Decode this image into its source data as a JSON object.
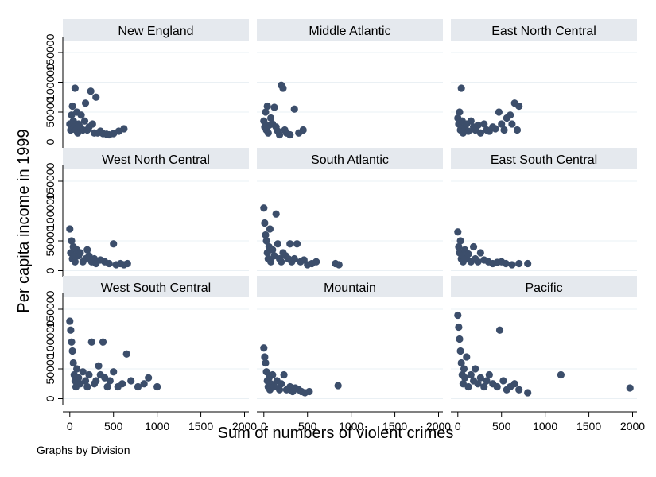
{
  "chart_data": {
    "type": "scatter",
    "layout": "3x3 small multiples",
    "xlabel": "Sum of numbers of violent crimes",
    "ylabel": "Per capita income in 1999",
    "xticks": [
      0,
      500,
      1000,
      1500,
      2000
    ],
    "yticks": [
      0,
      50000,
      100000,
      150000
    ],
    "xlim": [
      -80,
      2050
    ],
    "ylim": [
      -10000,
      170000
    ],
    "note": "Graphs by Division",
    "marker_color": "#3c4e6b",
    "panel_title_bg": "#e5e9ee",
    "panels": [
      {
        "title": "New England",
        "points": [
          [
            0,
            30000
          ],
          [
            10,
            20000
          ],
          [
            20,
            45000
          ],
          [
            30,
            60000
          ],
          [
            40,
            35000
          ],
          [
            50,
            25000
          ],
          [
            60,
            90000
          ],
          [
            70,
            20000
          ],
          [
            80,
            50000
          ],
          [
            90,
            15000
          ],
          [
            100,
            30000
          ],
          [
            120,
            25000
          ],
          [
            130,
            45000
          ],
          [
            150,
            20000
          ],
          [
            170,
            35000
          ],
          [
            180,
            65000
          ],
          [
            200,
            20000
          ],
          [
            220,
            25000
          ],
          [
            240,
            85000
          ],
          [
            260,
            30000
          ],
          [
            280,
            15000
          ],
          [
            300,
            75000
          ],
          [
            320,
            15000
          ],
          [
            350,
            18000
          ],
          [
            380,
            14000
          ],
          [
            420,
            13000
          ],
          [
            450,
            12000
          ],
          [
            500,
            14000
          ],
          [
            560,
            18000
          ],
          [
            620,
            22000
          ]
        ]
      },
      {
        "title": "Middle Atlantic",
        "points": [
          [
            0,
            35000
          ],
          [
            10,
            25000
          ],
          [
            20,
            50000
          ],
          [
            30,
            20000
          ],
          [
            40,
            60000
          ],
          [
            50,
            15000
          ],
          [
            60,
            28000
          ],
          [
            80,
            40000
          ],
          [
            100,
            30000
          ],
          [
            120,
            58000
          ],
          [
            140,
            25000
          ],
          [
            160,
            18000
          ],
          [
            180,
            12000
          ],
          [
            200,
            95000
          ],
          [
            220,
            90000
          ],
          [
            240,
            20000
          ],
          [
            260,
            15000
          ],
          [
            300,
            12000
          ],
          [
            350,
            55000
          ],
          [
            400,
            15000
          ],
          [
            450,
            20000
          ]
        ]
      },
      {
        "title": "East North Central",
        "points": [
          [
            0,
            40000
          ],
          [
            10,
            30000
          ],
          [
            20,
            50000
          ],
          [
            30,
            20000
          ],
          [
            40,
            90000
          ],
          [
            50,
            35000
          ],
          [
            60,
            15000
          ],
          [
            80,
            25000
          ],
          [
            100,
            30000
          ],
          [
            120,
            18000
          ],
          [
            150,
            35000
          ],
          [
            180,
            25000
          ],
          [
            200,
            20000
          ],
          [
            230,
            28000
          ],
          [
            260,
            15000
          ],
          [
            300,
            30000
          ],
          [
            330,
            20000
          ],
          [
            360,
            18000
          ],
          [
            400,
            25000
          ],
          [
            430,
            22000
          ],
          [
            470,
            50000
          ],
          [
            500,
            30000
          ],
          [
            530,
            20000
          ],
          [
            560,
            40000
          ],
          [
            600,
            45000
          ],
          [
            620,
            30000
          ],
          [
            650,
            65000
          ],
          [
            680,
            20000
          ],
          [
            700,
            60000
          ]
        ]
      },
      {
        "title": "West North Central",
        "points": [
          [
            0,
            70000
          ],
          [
            10,
            30000
          ],
          [
            20,
            50000
          ],
          [
            30,
            20000
          ],
          [
            40,
            40000
          ],
          [
            50,
            25000
          ],
          [
            60,
            15000
          ],
          [
            80,
            35000
          ],
          [
            100,
            25000
          ],
          [
            120,
            30000
          ],
          [
            150,
            15000
          ],
          [
            180,
            20000
          ],
          [
            200,
            35000
          ],
          [
            220,
            25000
          ],
          [
            250,
            15000
          ],
          [
            280,
            20000
          ],
          [
            300,
            12000
          ],
          [
            350,
            18000
          ],
          [
            400,
            15000
          ],
          [
            450,
            12000
          ],
          [
            500,
            45000
          ],
          [
            530,
            10000
          ],
          [
            580,
            12000
          ],
          [
            620,
            10000
          ],
          [
            660,
            12000
          ]
        ]
      },
      {
        "title": "South Atlantic",
        "points": [
          [
            0,
            105000
          ],
          [
            10,
            80000
          ],
          [
            20,
            60000
          ],
          [
            30,
            50000
          ],
          [
            40,
            30000
          ],
          [
            50,
            20000
          ],
          [
            60,
            40000
          ],
          [
            70,
            70000
          ],
          [
            80,
            15000
          ],
          [
            100,
            35000
          ],
          [
            120,
            25000
          ],
          [
            140,
            95000
          ],
          [
            160,
            45000
          ],
          [
            180,
            20000
          ],
          [
            200,
            15000
          ],
          [
            220,
            30000
          ],
          [
            250,
            25000
          ],
          [
            280,
            20000
          ],
          [
            300,
            45000
          ],
          [
            320,
            15000
          ],
          [
            350,
            20000
          ],
          [
            380,
            45000
          ],
          [
            420,
            15000
          ],
          [
            460,
            18000
          ],
          [
            500,
            10000
          ],
          [
            550,
            12000
          ],
          [
            600,
            15000
          ],
          [
            820,
            12000
          ],
          [
            860,
            10000
          ]
        ]
      },
      {
        "title": "East South Central",
        "points": [
          [
            0,
            65000
          ],
          [
            10,
            40000
          ],
          [
            20,
            30000
          ],
          [
            30,
            50000
          ],
          [
            40,
            20000
          ],
          [
            50,
            25000
          ],
          [
            60,
            15000
          ],
          [
            80,
            35000
          ],
          [
            100,
            20000
          ],
          [
            120,
            28000
          ],
          [
            150,
            15000
          ],
          [
            180,
            40000
          ],
          [
            200,
            20000
          ],
          [
            230,
            15000
          ],
          [
            260,
            30000
          ],
          [
            300,
            18000
          ],
          [
            350,
            15000
          ],
          [
            400,
            12000
          ],
          [
            450,
            14000
          ],
          [
            500,
            15000
          ],
          [
            550,
            12000
          ],
          [
            620,
            10000
          ],
          [
            700,
            12000
          ],
          [
            800,
            12000
          ]
        ]
      },
      {
        "title": "West South Central",
        "points": [
          [
            0,
            130000
          ],
          [
            10,
            115000
          ],
          [
            20,
            95000
          ],
          [
            30,
            80000
          ],
          [
            40,
            60000
          ],
          [
            50,
            40000
          ],
          [
            60,
            30000
          ],
          [
            70,
            20000
          ],
          [
            80,
            50000
          ],
          [
            100,
            35000
          ],
          [
            120,
            25000
          ],
          [
            150,
            45000
          ],
          [
            180,
            30000
          ],
          [
            200,
            20000
          ],
          [
            220,
            40000
          ],
          [
            250,
            95000
          ],
          [
            280,
            25000
          ],
          [
            300,
            30000
          ],
          [
            330,
            55000
          ],
          [
            350,
            40000
          ],
          [
            380,
            95000
          ],
          [
            400,
            35000
          ],
          [
            430,
            20000
          ],
          [
            460,
            30000
          ],
          [
            500,
            45000
          ],
          [
            550,
            20000
          ],
          [
            600,
            25000
          ],
          [
            650,
            75000
          ],
          [
            700,
            30000
          ],
          [
            780,
            20000
          ],
          [
            850,
            25000
          ],
          [
            900,
            35000
          ],
          [
            1000,
            20000
          ]
        ]
      },
      {
        "title": "Mountain",
        "points": [
          [
            0,
            85000
          ],
          [
            10,
            70000
          ],
          [
            20,
            60000
          ],
          [
            30,
            45000
          ],
          [
            40,
            30000
          ],
          [
            50,
            20000
          ],
          [
            60,
            35000
          ],
          [
            70,
            15000
          ],
          [
            80,
            25000
          ],
          [
            100,
            40000
          ],
          [
            120,
            20000
          ],
          [
            150,
            30000
          ],
          [
            180,
            15000
          ],
          [
            200,
            25000
          ],
          [
            230,
            40000
          ],
          [
            260,
            15000
          ],
          [
            300,
            20000
          ],
          [
            330,
            12000
          ],
          [
            360,
            18000
          ],
          [
            400,
            15000
          ],
          [
            430,
            12000
          ],
          [
            470,
            10000
          ],
          [
            520,
            12000
          ],
          [
            850,
            22000
          ]
        ]
      },
      {
        "title": "Pacific",
        "points": [
          [
            0,
            140000
          ],
          [
            10,
            120000
          ],
          [
            20,
            100000
          ],
          [
            30,
            80000
          ],
          [
            40,
            60000
          ],
          [
            50,
            40000
          ],
          [
            60,
            25000
          ],
          [
            70,
            50000
          ],
          [
            80,
            35000
          ],
          [
            100,
            70000
          ],
          [
            120,
            20000
          ],
          [
            150,
            40000
          ],
          [
            180,
            30000
          ],
          [
            200,
            50000
          ],
          [
            230,
            25000
          ],
          [
            260,
            35000
          ],
          [
            300,
            20000
          ],
          [
            330,
            30000
          ],
          [
            360,
            40000
          ],
          [
            400,
            25000
          ],
          [
            450,
            20000
          ],
          [
            480,
            115000
          ],
          [
            520,
            30000
          ],
          [
            560,
            15000
          ],
          [
            600,
            20000
          ],
          [
            650,
            25000
          ],
          [
            700,
            15000
          ],
          [
            800,
            10000
          ],
          [
            1180,
            40000
          ],
          [
            1970,
            18000
          ]
        ]
      }
    ]
  }
}
